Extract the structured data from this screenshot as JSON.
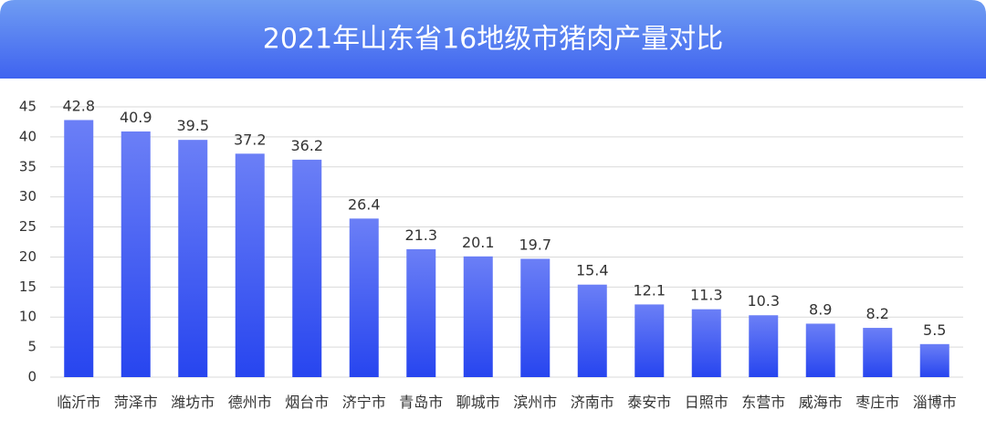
{
  "chart_data": {
    "type": "bar",
    "title": "2021年山东省16地级市猪肉产量对比",
    "categories": [
      "临沂市",
      "菏泽市",
      "潍坊市",
      "德州市",
      "烟台市",
      "济宁市",
      "青岛市",
      "聊城市",
      "滨州市",
      "济南市",
      "泰安市",
      "日照市",
      "东营市",
      "威海市",
      "枣庄市",
      "淄博市"
    ],
    "values": [
      42.8,
      40.9,
      39.5,
      37.2,
      36.2,
      26.4,
      21.3,
      20.1,
      19.7,
      15.4,
      12.1,
      11.3,
      10.3,
      8.9,
      8.2,
      5.5
    ],
    "ylim": [
      0,
      45
    ],
    "yticks": [
      0,
      5,
      10,
      15,
      20,
      25,
      30,
      35,
      40,
      45
    ],
    "grid": true,
    "color": "#3a5af2"
  }
}
